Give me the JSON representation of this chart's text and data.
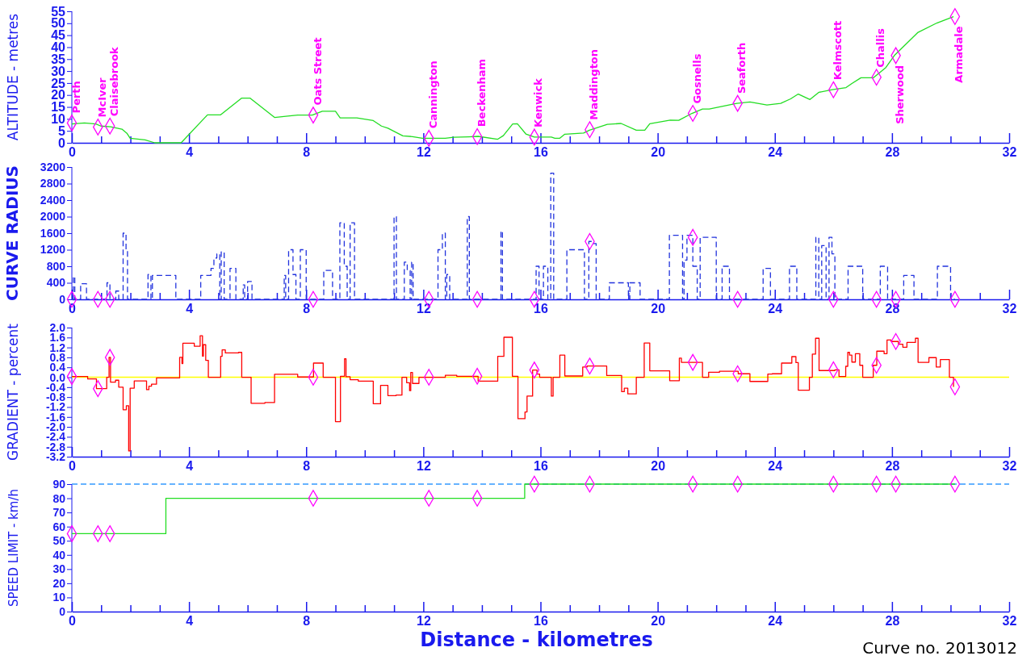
{
  "chart_data": [
    {
      "type": "line",
      "ylabel": "ALTITUDE - metres",
      "xlim": [
        0,
        32
      ],
      "ylim": [
        0,
        55
      ],
      "xticks": [
        0,
        {
          "value": 1,
          "label": null
        },
        {
          "value": 2,
          "label": null
        },
        {
          "value": 3,
          "label": null
        },
        4,
        {
          "value": 5,
          "label": null
        },
        {
          "value": 6,
          "label": null
        },
        {
          "value": 7,
          "label": null
        },
        8,
        {
          "value": 9,
          "label": null
        },
        {
          "value": 10,
          "label": null
        },
        {
          "value": 11,
          "label": null
        },
        12,
        {
          "value": 13,
          "label": null
        },
        {
          "value": 14,
          "label": null
        },
        {
          "value": 15,
          "label": null
        },
        16,
        {
          "value": 17,
          "label": null
        },
        {
          "value": 18,
          "label": null
        },
        {
          "value": 19,
          "label": null
        },
        20,
        {
          "value": 21,
          "label": null
        },
        {
          "value": 22,
          "label": null
        },
        {
          "value": 23,
          "label": null
        },
        24,
        {
          "value": 25,
          "label": null
        },
        {
          "value": 26,
          "label": null
        },
        {
          "value": 27,
          "label": null
        },
        28,
        {
          "value": 29,
          "label": null
        },
        {
          "value": 30,
          "label": null
        },
        {
          "value": 31,
          "label": null
        },
        32
      ],
      "yticks": [
        0,
        5,
        10,
        15,
        20,
        25,
        30,
        35,
        40,
        45,
        50,
        55
      ],
      "series": [
        {
          "color": "#22dd22",
          "x": [
            0,
            0.43,
            0.82,
            0.99,
            1.32,
            1.71,
            1.88,
            1.99,
            2.5,
            2.83,
            3.73,
            4.63,
            5.08,
            5.8,
            6.08,
            6.92,
            7.37,
            7.71,
            8.21,
            8.55,
            9.0,
            9.16,
            9.73,
            10.29,
            10.57,
            10.79,
            11.3,
            11.63,
            11.97,
            12.75,
            13.03,
            13.53,
            13.87,
            14.54,
            14.73,
            15.05,
            15.21,
            15.5,
            15.79,
            16.0,
            16.37,
            16.49,
            16.66,
            16.83,
            17.47,
            17.67,
            18.28,
            18.75,
            19.27,
            19.56,
            19.73,
            20.43,
            20.72,
            21.17,
            21.53,
            21.76,
            22.7,
            23.15,
            23.73,
            24.2,
            24.54,
            24.8,
            25.2,
            25.5,
            25.96,
            26.43,
            26.63,
            26.94,
            27.36,
            27.79,
            28.08,
            28.89,
            29.53,
            30.1
          ],
          "values": [
            7.9,
            8.3,
            7.9,
            7,
            6.7,
            5.7,
            4,
            1.9,
            1.2,
            0,
            0,
            11.7,
            11.7,
            18.7,
            18.7,
            10.6,
            11.2,
            11.6,
            11.6,
            13.2,
            13.2,
            10.4,
            10.4,
            9.3,
            7,
            6.1,
            2.9,
            2.6,
            1.9,
            1.9,
            2.3,
            2.5,
            2.7,
            1.5,
            3,
            7.9,
            8,
            3.7,
            2.4,
            2.4,
            2.4,
            1.9,
            1.9,
            3.6,
            4.1,
            5.3,
            7.7,
            8.1,
            5.3,
            5.3,
            8,
            9.5,
            9.4,
            12.3,
            14.1,
            14.1,
            16.5,
            17.1,
            15.8,
            16.5,
            18.4,
            20.4,
            18.1,
            21.1,
            22.2,
            23.1,
            24.8,
            27.2,
            27.2,
            31.5,
            36.5,
            46.2,
            50.1,
            52.8
          ]
        },
        {
          "type": "scatter",
          "color": "#ff00ff",
          "marker": "diamond",
          "x": [
            0,
            0.89,
            1.3,
            8.24,
            12.19,
            13.84,
            15.79,
            17.68,
            21.2,
            22.73,
            26.0,
            27.47,
            28.13,
            30.15
          ],
          "values": [
            8.3,
            6.6,
            7,
            11.6,
            1.9,
            2.6,
            2.4,
            5.5,
            12.3,
            16.5,
            22.2,
            27.4,
            36.5,
            52.8
          ]
        }
      ],
      "annotations": [
        {
          "text": "Perth",
          "x": 0,
          "y": 8.3
        },
        {
          "text": "McIver",
          "x": 0.89,
          "y": 6.6
        },
        {
          "text": "Claisebrook",
          "x": 1.3,
          "y": 7
        },
        {
          "text": "Oats Street",
          "x": 8.24,
          "y": 11.6
        },
        {
          "text": "Cannington",
          "x": 12.19,
          "y": 1.9
        },
        {
          "text": "Beckenham",
          "x": 13.84,
          "y": 2.6
        },
        {
          "text": "Kenwick",
          "x": 15.79,
          "y": 2.4
        },
        {
          "text": "Maddington",
          "x": 17.68,
          "y": 5.5
        },
        {
          "text": "Gosnells",
          "x": 21.2,
          "y": 12.3
        },
        {
          "text": "Seaforth",
          "x": 22.73,
          "y": 16.5
        },
        {
          "text": "Kelmscott",
          "x": 26.0,
          "y": 22.2
        },
        {
          "text": "Challis",
          "x": 27.47,
          "y": 27.4
        },
        {
          "text": "Sherwood",
          "x": 28.13,
          "y": 36.5
        },
        {
          "text": "Armadale",
          "x": 30.15,
          "y": 52.8
        }
      ]
    },
    {
      "type": "step",
      "ylabel": "CURVE RADIUS",
      "xlim": [
        0,
        32
      ],
      "ylim": [
        0,
        3200
      ],
      "xticks": [
        0,
        {
          "value": 1,
          "label": null
        },
        {
          "value": 2,
          "label": null
        },
        {
          "value": 3,
          "label": null
        },
        4,
        {
          "value": 5,
          "label": null
        },
        {
          "value": 6,
          "label": null
        },
        {
          "value": 7,
          "label": null
        },
        8,
        {
          "value": 9,
          "label": null
        },
        {
          "value": 10,
          "label": null
        },
        {
          "value": 11,
          "label": null
        },
        12,
        {
          "value": 13,
          "label": null
        },
        {
          "value": 14,
          "label": null
        },
        {
          "value": 15,
          "label": null
        },
        16,
        {
          "value": 17,
          "label": null
        },
        {
          "value": 18,
          "label": null
        },
        {
          "value": 19,
          "label": null
        },
        20,
        {
          "value": 21,
          "label": null
        },
        {
          "value": 22,
          "label": null
        },
        {
          "value": 23,
          "label": null
        },
        24,
        {
          "value": 25,
          "label": null
        },
        {
          "value": 26,
          "label": null
        },
        {
          "value": 27,
          "label": null
        },
        28,
        {
          "value": 29,
          "label": null
        },
        {
          "value": 30,
          "label": null
        },
        {
          "value": 31,
          "label": null
        },
        32
      ],
      "yticks": [
        0,
        400,
        800,
        1200,
        1600,
        2000,
        2400,
        2800,
        3200
      ],
      "series": [
        {
          "color": "#2233dd",
          "line_style": "dashed",
          "x": [
            0,
            0.05,
            0.1,
            0.3,
            0.5,
            1.2,
            1.3,
            1.5,
            1.6,
            1.75,
            1.85,
            1.9,
            2.6,
            2.7,
            2.75,
            3.55,
            4.4,
            4.75,
            4.85,
            4.95,
            5.05,
            5.1,
            5.2,
            5.4,
            5.6,
            5.85,
            5.9,
            6.0,
            6.15,
            7.25,
            7.3,
            7.4,
            7.55,
            7.65,
            7.8,
            8.0,
            8.6,
            8.9,
            9.15,
            9.3,
            9.4,
            9.5,
            9.65,
            11.0,
            11.08,
            11.35,
            11.45,
            11.55,
            11.6,
            11.65,
            12.5,
            12.65,
            12.75,
            12.8,
            12.9,
            13.5,
            13.57,
            14.65,
            14.7,
            15.85,
            15.95,
            16.1,
            16.25,
            16.35,
            16.45,
            16.9,
            17.5,
            17.65,
            17.8,
            17.9,
            18.35,
            19.0,
            19.05,
            19.4,
            20.4,
            20.85,
            20.9,
            21.0,
            21.2,
            21.35,
            21.45,
            22.0,
            22.2,
            22.45,
            23.6,
            23.85,
            24.5,
            24.75,
            25.4,
            25.5,
            25.6,
            25.75,
            25.85,
            25.95,
            26.05,
            26.5,
            27.0,
            27.6,
            27.85,
            28.4,
            28.75,
            29.55,
            30.0,
            30.15
          ],
          "values": [
            0,
            550,
            0,
            380,
            0,
            400,
            0,
            200,
            0,
            1600,
            1200,
            0,
            600,
            0,
            580,
            0,
            580,
            750,
            1000,
            1100,
            0,
            1150,
            0,
            750,
            0,
            350,
            0,
            430,
            0,
            580,
            0,
            1200,
            600,
            0,
            1200,
            0,
            700,
            0,
            1850,
            800,
            0,
            1850,
            0,
            2000,
            0,
            900,
            700,
            0,
            900,
            0,
            1200,
            1600,
            0,
            600,
            0,
            2000,
            0,
            1650,
            0,
            800,
            0,
            800,
            0,
            3050,
            0,
            1200,
            0,
            1400,
            1350,
            0,
            400,
            0,
            400,
            0,
            1550,
            0,
            950,
            1550,
            800,
            0,
            1500,
            0,
            800,
            0,
            750,
            0,
            800,
            0,
            1500,
            0,
            1300,
            0,
            1500,
            1100,
            0,
            800,
            0,
            800,
            0,
            580,
            0,
            800,
            0,
            0
          ]
        },
        {
          "type": "scatter",
          "color": "#ff00ff",
          "marker": "diamond",
          "x": [
            0,
            0.89,
            1.3,
            8.24,
            12.19,
            13.84,
            15.79,
            17.68,
            21.2,
            22.73,
            26.0,
            27.47,
            28.13,
            30.15
          ],
          "values": [
            0,
            0,
            0,
            0,
            0,
            0,
            0,
            1400,
            1500,
            0,
            0,
            0,
            0,
            0
          ]
        }
      ]
    },
    {
      "type": "step",
      "ylabel": "GRADIENT - percent",
      "xlim": [
        0,
        32
      ],
      "ylim": [
        -3.2,
        2.0
      ],
      "xticks": [
        0,
        {
          "value": 1,
          "label": null
        },
        {
          "value": 2,
          "label": null
        },
        {
          "value": 3,
          "label": null
        },
        4,
        {
          "value": 5,
          "label": null
        },
        {
          "value": 6,
          "label": null
        },
        {
          "value": 7,
          "label": null
        },
        8,
        {
          "value": 9,
          "label": null
        },
        {
          "value": 10,
          "label": null
        },
        {
          "value": 11,
          "label": null
        },
        12,
        {
          "value": 13,
          "label": null
        },
        {
          "value": 14,
          "label": null
        },
        {
          "value": 15,
          "label": null
        },
        16,
        {
          "value": 17,
          "label": null
        },
        {
          "value": 18,
          "label": null
        },
        {
          "value": 19,
          "label": null
        },
        20,
        {
          "value": 21,
          "label": null
        },
        {
          "value": 22,
          "label": null
        },
        {
          "value": 23,
          "label": null
        },
        24,
        {
          "value": 25,
          "label": null
        },
        {
          "value": 26,
          "label": null
        },
        {
          "value": 27,
          "label": null
        },
        28,
        {
          "value": 29,
          "label": null
        },
        {
          "value": 30,
          "label": null
        },
        {
          "value": 31,
          "label": null
        },
        32
      ],
      "yticks": [
        {
          "value": 2,
          "label": "2.0"
        },
        1.6,
        1.2,
        0.8,
        0.4,
        {
          "value": 0,
          "label": "0.0"
        },
        -0.4,
        -0.8,
        -1.2,
        -1.6,
        {
          "value": -2,
          "label": "-2.0"
        },
        -2.4,
        -2.8,
        -3.2
      ],
      "ref_lines": [
        {
          "axis": "y",
          "value": 0,
          "color": "#ffff00"
        }
      ],
      "series": [
        {
          "color": "#ff0000",
          "x": [
            0,
            0.54,
            0.84,
            1.19,
            1.27,
            1.32,
            1.49,
            1.6,
            1.75,
            1.86,
            1.94,
            1.99,
            2.13,
            2.55,
            2.63,
            2.72,
            2.89,
            3.68,
            3.76,
            3.79,
            4.18,
            4.38,
            4.46,
            4.49,
            4.57,
            4.66,
            5.08,
            5.13,
            5.24,
            5.69,
            5.8,
            6.12,
            6.59,
            6.92,
            7.71,
            8.25,
            8.58,
            9.0,
            9.17,
            9.31,
            9.36,
            9.5,
            9.78,
            10.29,
            10.54,
            10.79,
            11.07,
            11.27,
            11.43,
            11.53,
            11.57,
            11.63,
            11.85,
            12.75,
            13.14,
            13.87,
            14.54,
            14.75,
            15.04,
            15.23,
            15.47,
            15.54,
            15.73,
            15.88,
            15.97,
            16.37,
            16.43,
            16.66,
            16.83,
            17.44,
            17.59,
            18.26,
            18.77,
            18.86,
            18.98,
            19.27,
            19.54,
            19.73,
            20.41,
            20.74,
            20.81,
            21.53,
            21.74,
            22.11,
            22.75,
            23.15,
            23.76,
            23.91,
            24.23,
            24.58,
            24.72,
            24.8,
            25.18,
            25.28,
            25.39,
            25.51,
            26.05,
            26.19,
            26.42,
            26.49,
            26.55,
            26.63,
            26.75,
            26.9,
            27.0,
            27.36,
            27.48,
            27.73,
            27.83,
            27.97,
            28.22,
            28.37,
            28.51,
            28.8,
            28.89,
            29.26,
            29.51,
            29.65,
            29.96,
            30.1
          ],
          "values": [
            0.03,
            -0.07,
            -0.46,
            0,
            0.8,
            -0.2,
            -0.12,
            -0.4,
            -1.31,
            -1.15,
            -2.97,
            -0.44,
            -0.15,
            -0.5,
            -0.36,
            -0.28,
            -0.03,
            0.8,
            0.55,
            1.37,
            1.25,
            1.67,
            0.85,
            1.31,
            0.68,
            0,
            0.84,
            1.1,
            0.98,
            1.0,
            0,
            -1.05,
            -1.02,
            0.12,
            0.01,
            0.57,
            0,
            -1.79,
            0.04,
            0.74,
            0.02,
            -0.1,
            -0.16,
            -1.07,
            -0.33,
            -0.74,
            -0.72,
            0,
            -0.22,
            -0.54,
            0.19,
            -0.25,
            0,
            0.08,
            0.04,
            -0.16,
            0.84,
            1.61,
            0.04,
            -1.67,
            -1.4,
            -0.76,
            0.29,
            0.13,
            0,
            -0.76,
            0,
            0.89,
            0.05,
            0.41,
            0.45,
            0.07,
            -0.58,
            -0.44,
            -0.67,
            0,
            1.38,
            0.26,
            -0.14,
            0.77,
            0.6,
            0,
            0.2,
            0.24,
            0.14,
            -0.17,
            0.13,
            0.14,
            0.57,
            0.83,
            0.59,
            -0.52,
            0,
            0.93,
            1.57,
            0.27,
            0.3,
            0.03,
            0.44,
            1.0,
            0.89,
            0.61,
            0.95,
            0.48,
            0,
            0.48,
            1.05,
            0.95,
            1.5,
            1.44,
            1.33,
            1.21,
            1.4,
            1.57,
            0.6,
            0.79,
            0.41,
            0.71,
            0,
            -0.39
          ]
        },
        {
          "type": "scatter",
          "color": "#ff00ff",
          "marker": "diamond",
          "x": [
            0,
            0.89,
            1.3,
            8.24,
            12.19,
            13.84,
            15.79,
            17.68,
            21.2,
            22.73,
            26.0,
            27.47,
            28.13,
            30.15
          ],
          "values": [
            0.03,
            -0.46,
            0.8,
            0,
            0,
            0.04,
            0.29,
            0.45,
            0.6,
            0.14,
            0.3,
            0.48,
            1.44,
            -0.39
          ]
        }
      ]
    },
    {
      "type": "step",
      "ylabel": "SPEED LIMIT - km/h",
      "xlabel": "Distance - kilometres",
      "xlim": [
        0,
        32
      ],
      "ylim": [
        0,
        90
      ],
      "xticks": [
        0,
        {
          "value": 1,
          "label": null
        },
        {
          "value": 2,
          "label": null
        },
        {
          "value": 3,
          "label": null
        },
        4,
        {
          "value": 5,
          "label": null
        },
        {
          "value": 6,
          "label": null
        },
        {
          "value": 7,
          "label": null
        },
        8,
        {
          "value": 9,
          "label": null
        },
        {
          "value": 10,
          "label": null
        },
        {
          "value": 11,
          "label": null
        },
        12,
        {
          "value": 13,
          "label": null
        },
        {
          "value": 14,
          "label": null
        },
        {
          "value": 15,
          "label": null
        },
        16,
        {
          "value": 17,
          "label": null
        },
        {
          "value": 18,
          "label": null
        },
        {
          "value": 19,
          "label": null
        },
        20,
        {
          "value": 21,
          "label": null
        },
        {
          "value": 22,
          "label": null
        },
        {
          "value": 23,
          "label": null
        },
        24,
        {
          "value": 25,
          "label": null
        },
        {
          "value": 26,
          "label": null
        },
        {
          "value": 27,
          "label": null
        },
        28,
        {
          "value": 29,
          "label": null
        },
        {
          "value": 30,
          "label": null
        },
        {
          "value": 31,
          "label": null
        },
        32
      ],
      "yticks": [
        0,
        10,
        20,
        30,
        40,
        50,
        60,
        70,
        80,
        90
      ],
      "ref_lines": [
        {
          "axis": "y",
          "value": 90,
          "color": "#3399ff",
          "line_style": "dashed"
        }
      ],
      "series": [
        {
          "color": "#22dd22",
          "x": [
            0,
            3.21,
            15.46,
            30.15
          ],
          "values": [
            55,
            80,
            90,
            90
          ]
        },
        {
          "type": "scatter",
          "color": "#ff00ff",
          "marker": "diamond",
          "x": [
            0,
            0.89,
            1.3,
            8.24,
            12.19,
            13.84,
            15.79,
            17.68,
            21.2,
            22.73,
            26.0,
            27.47,
            28.13,
            30.15
          ],
          "values": [
            55,
            55,
            55,
            80,
            80,
            80,
            90,
            90,
            90,
            90,
            90,
            90,
            90,
            90
          ]
        }
      ],
      "annotations": [
        "Curve no. 2013012"
      ]
    }
  ]
}
